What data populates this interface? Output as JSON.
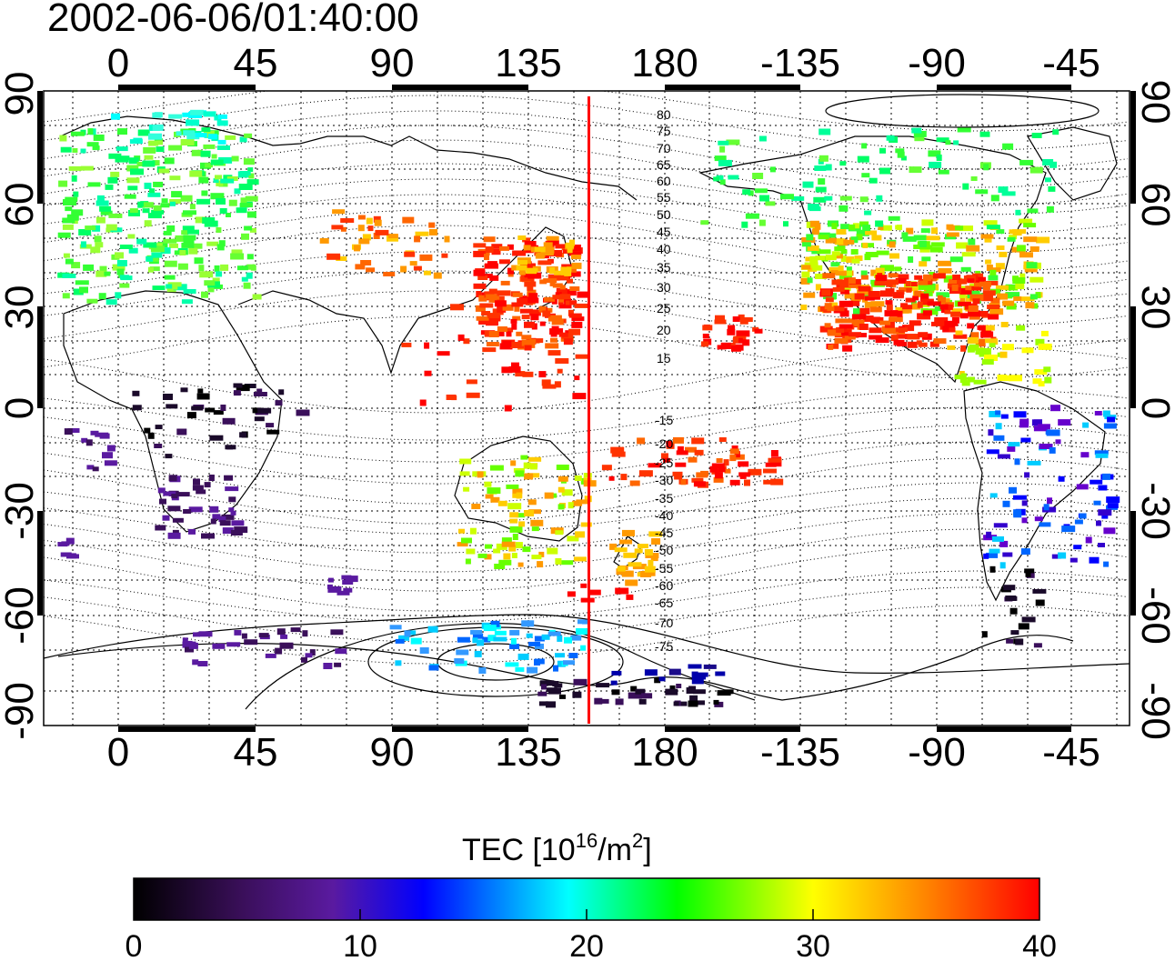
{
  "title": "2002-06-06/01:40:00",
  "map": {
    "lon_labels": [
      "0",
      "45",
      "90",
      "135",
      "180",
      "-135",
      "-90",
      "-45"
    ],
    "lat_labels": [
      "90",
      "60",
      "30",
      "0",
      "-30",
      "-60",
      "-90"
    ],
    "marker_longitude": 155,
    "marker_color": "#ff0000",
    "contour_labels_north": [
      "80",
      "75",
      "70",
      "65",
      "60",
      "55",
      "50",
      "45",
      "40",
      "35",
      "30",
      "25",
      "20",
      "15"
    ],
    "contour_labels_south": [
      "-15",
      "-20",
      "-25",
      "-30",
      "-35",
      "-40",
      "-45",
      "-50",
      "-55",
      "-60",
      "-65",
      "-70",
      "-75"
    ]
  },
  "colorbar": {
    "label_main": "TEC  [10",
    "label_exp1": "16",
    "label_mid": "/m",
    "label_exp2": "2",
    "label_end": "]",
    "min": 0,
    "max": 40,
    "tick_labels": [
      "0",
      "10",
      "20",
      "30",
      "40"
    ],
    "colors": [
      "#000000",
      "#3a0f5a",
      "#5a1aa0",
      "#0000ff",
      "#00ffff",
      "#00ff00",
      "#ffff00",
      "#ff7f00",
      "#ff0000"
    ]
  }
}
